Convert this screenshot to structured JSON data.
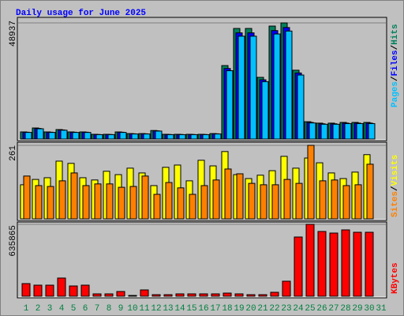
{
  "title": "Daily usage for June 2025",
  "categories": [
    1,
    2,
    3,
    4,
    5,
    6,
    7,
    8,
    9,
    10,
    11,
    12,
    13,
    14,
    15,
    16,
    17,
    18,
    19,
    20,
    21,
    22,
    23,
    24,
    25,
    26,
    27,
    28,
    29,
    30,
    31
  ],
  "category_label_colors": [
    "#008040",
    "#008040",
    "#008040",
    "#008040",
    "#008040",
    "#008040",
    "#008040",
    "#008040",
    "#008040",
    "#008040",
    "#008040",
    "#008040",
    "#008040",
    "#008040",
    "#008040",
    "#008040",
    "#008040",
    "#008040",
    "#008040",
    "#008040",
    "#008040",
    "#008040",
    "#008040",
    "#008040",
    "#008040",
    "#008040",
    "#008040",
    "#008040",
    "#008040",
    "#008040",
    "#008040"
  ],
  "legend_separator": "/",
  "chart_data": [
    {
      "type": "bar",
      "ylim": [
        0,
        48937
      ],
      "yticks": [
        48937
      ],
      "grid": true,
      "series": [
        {
          "name": "Hits",
          "color": "#00805c",
          "values": [
            3000,
            4660,
            3000,
            4000,
            3000,
            3000,
            2000,
            2000,
            3000,
            2300,
            2300,
            3600,
            2000,
            2000,
            2000,
            2000,
            2300,
            30960,
            46600,
            46600,
            26000,
            47600,
            48937,
            29000,
            7300,
            6700,
            6700,
            7000,
            7000,
            7000,
            null
          ]
        },
        {
          "name": "Files",
          "color": "#0000ff",
          "values": [
            2880,
            4470,
            2880,
            3840,
            2880,
            2880,
            1920,
            1920,
            2880,
            2210,
            2210,
            3460,
            1920,
            1920,
            1920,
            1920,
            2210,
            29720,
            44740,
            44740,
            24960,
            45700,
            46980,
            27840,
            7010,
            6430,
            6430,
            6720,
            6720,
            6720,
            null
          ]
        },
        {
          "name": "Pages",
          "color": "#00c0ff",
          "values": [
            2790,
            4330,
            2790,
            3720,
            2790,
            2790,
            1860,
            1860,
            2790,
            2140,
            2140,
            3350,
            1860,
            1860,
            1860,
            1860,
            2140,
            28790,
            43340,
            43340,
            24180,
            44270,
            45510,
            26970,
            6790,
            6230,
            6230,
            6510,
            6510,
            6510,
            null
          ]
        }
      ]
    },
    {
      "type": "bar",
      "ylim": [
        0,
        261
      ],
      "yticks": [
        261
      ],
      "grid": true,
      "series": [
        {
          "name": "Visits",
          "color": "#ffff00",
          "values": [
            121,
            140,
            146,
            205,
            197,
            146,
            138,
            169,
            157,
            180,
            163,
            118,
            183,
            191,
            135,
            208,
            188,
            239,
            157,
            143,
            155,
            171,
            222,
            180,
            216,
            199,
            163,
            143,
            166,
            228,
            null
          ]
        },
        {
          "name": "Sites",
          "color": "#ff8000",
          "values": [
            152,
            118,
            115,
            135,
            163,
            118,
            124,
            124,
            112,
            115,
            152,
            87,
            129,
            110,
            87,
            118,
            138,
            177,
            160,
            126,
            121,
            121,
            140,
            126,
            261,
            135,
            138,
            118,
            121,
            194,
            null
          ]
        }
      ]
    },
    {
      "type": "bar",
      "ylim": [
        0,
        635865
      ],
      "yticks": [
        635865
      ],
      "grid": true,
      "series": [
        {
          "name": "KBytes",
          "color": "#ff0000",
          "values": [
            112000,
            98000,
            98000,
            161000,
            91000,
            98000,
            21000,
            21000,
            42000,
            7000,
            56000,
            14000,
            14000,
            21000,
            21000,
            21000,
            21000,
            28000,
            21000,
            14000,
            14000,
            35000,
            133000,
            524000,
            635865,
            573000,
            559000,
            587000,
            566000,
            566000,
            null
          ]
        }
      ]
    }
  ]
}
